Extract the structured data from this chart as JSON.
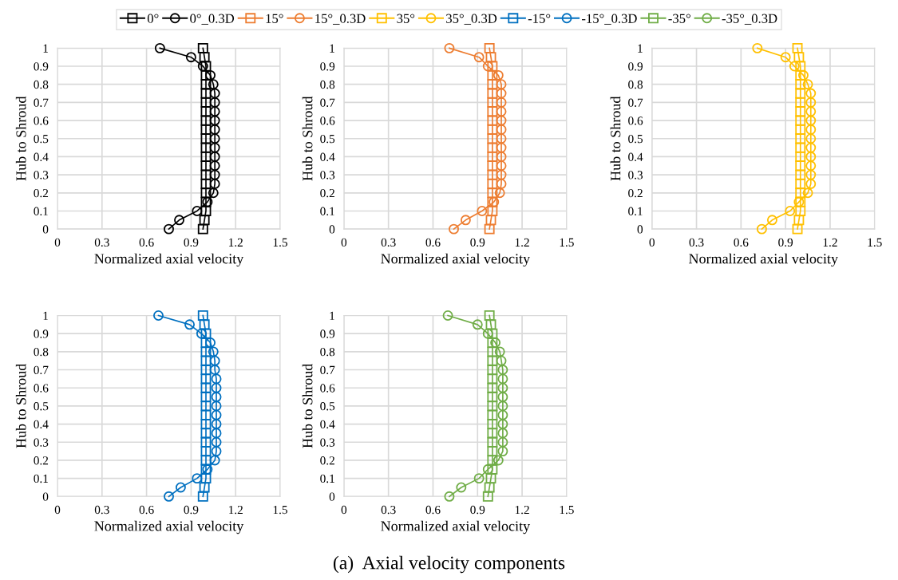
{
  "chart_data": [
    {
      "type": "line",
      "xlabel": "Normalized axial velocity",
      "ylabel": "Hub to Shroud",
      "xlim": [
        0,
        1.5
      ],
      "xticks": [
        0,
        0.3,
        0.6,
        0.9,
        1.2,
        1.5
      ],
      "ylim": [
        0,
        1
      ],
      "yticks": [
        0,
        0.1,
        0.2,
        0.3,
        0.4,
        0.5,
        0.6,
        0.7,
        0.8,
        0.9,
        1
      ],
      "grid": true,
      "legend": "top",
      "line_style": "solid",
      "series": [
        {
          "name": "0°",
          "color": "#000000",
          "marker": "square",
          "x": [
            0.98,
            0.99,
            1.0,
            1.0,
            1.0,
            1.0,
            1.0,
            1.0,
            1.0,
            1.0,
            1.0,
            1.0,
            1.0,
            1.0,
            1.0,
            1.0,
            1.0,
            1.0,
            1.0,
            0.99,
            0.98
          ],
          "values": [
            0,
            0.05,
            0.1,
            0.15,
            0.2,
            0.25,
            0.3,
            0.35,
            0.4,
            0.45,
            0.5,
            0.55,
            0.6,
            0.65,
            0.7,
            0.75,
            0.8,
            0.85,
            0.9,
            0.95,
            1
          ]
        },
        {
          "name": "0°_0.3D",
          "color": "#000000",
          "marker": "circle",
          "x": [
            0.75,
            0.82,
            0.94,
            1.01,
            1.05,
            1.06,
            1.06,
            1.06,
            1.06,
            1.06,
            1.06,
            1.06,
            1.06,
            1.06,
            1.06,
            1.06,
            1.05,
            1.03,
            0.98,
            0.9,
            0.69
          ],
          "values": [
            0,
            0.05,
            0.1,
            0.15,
            0.2,
            0.25,
            0.3,
            0.35,
            0.4,
            0.45,
            0.5,
            0.55,
            0.6,
            0.65,
            0.7,
            0.75,
            0.8,
            0.85,
            0.9,
            0.95,
            1
          ]
        }
      ]
    },
    {
      "type": "line",
      "xlabel": "Normalized axial velocity",
      "ylabel": "Hub to Shroud",
      "xlim": [
        0,
        1.5
      ],
      "xticks": [
        0,
        0.3,
        0.6,
        0.9,
        1.2,
        1.5
      ],
      "ylim": [
        0,
        1
      ],
      "yticks": [
        0,
        0.1,
        0.2,
        0.3,
        0.4,
        0.5,
        0.6,
        0.7,
        0.8,
        0.9,
        1
      ],
      "grid": true,
      "legend": "top",
      "line_style": "solid",
      "series": [
        {
          "name": "15°",
          "color": "#ed7d31",
          "marker": "square",
          "x": [
            0.98,
            0.99,
            1.0,
            1.0,
            1.0,
            1.0,
            1.0,
            1.0,
            1.0,
            1.0,
            1.0,
            1.0,
            1.0,
            1.0,
            1.0,
            1.0,
            1.0,
            1.0,
            1.0,
            0.99,
            0.98
          ],
          "values": [
            0,
            0.05,
            0.1,
            0.15,
            0.2,
            0.25,
            0.3,
            0.35,
            0.4,
            0.45,
            0.5,
            0.55,
            0.6,
            0.65,
            0.7,
            0.75,
            0.8,
            0.85,
            0.9,
            0.95,
            1
          ]
        },
        {
          "name": "15°_0.3D",
          "color": "#ed7d31",
          "marker": "circle",
          "x": [
            0.74,
            0.82,
            0.93,
            1.01,
            1.05,
            1.06,
            1.06,
            1.06,
            1.06,
            1.06,
            1.06,
            1.06,
            1.06,
            1.06,
            1.06,
            1.06,
            1.06,
            1.04,
            0.97,
            0.91,
            0.71
          ],
          "values": [
            0,
            0.05,
            0.1,
            0.15,
            0.2,
            0.25,
            0.3,
            0.35,
            0.4,
            0.45,
            0.5,
            0.55,
            0.6,
            0.65,
            0.7,
            0.75,
            0.8,
            0.85,
            0.9,
            0.95,
            1
          ]
        }
      ]
    },
    {
      "type": "line",
      "xlabel": "Normalized axial velocity",
      "ylabel": "Hub to Shroud",
      "xlim": [
        0,
        1.5
      ],
      "xticks": [
        0,
        0.3,
        0.6,
        0.9,
        1.2,
        1.5
      ],
      "ylim": [
        0,
        1
      ],
      "yticks": [
        0,
        0.1,
        0.2,
        0.3,
        0.4,
        0.5,
        0.6,
        0.7,
        0.8,
        0.9,
        1
      ],
      "grid": true,
      "legend": "top",
      "line_style": "solid",
      "series": [
        {
          "name": "35°",
          "color": "#ffc000",
          "marker": "square",
          "x": [
            0.98,
            0.99,
            1.0,
            1.0,
            1.0,
            1.0,
            1.0,
            1.0,
            1.0,
            1.0,
            1.0,
            1.0,
            1.0,
            1.0,
            1.0,
            1.0,
            1.0,
            1.0,
            1.0,
            0.99,
            0.98
          ],
          "values": [
            0,
            0.05,
            0.1,
            0.15,
            0.2,
            0.25,
            0.3,
            0.35,
            0.4,
            0.45,
            0.5,
            0.55,
            0.6,
            0.65,
            0.7,
            0.75,
            0.8,
            0.85,
            0.9,
            0.95,
            1
          ]
        },
        {
          "name": "35°_0.3D",
          "color": "#ffc000",
          "marker": "circle",
          "x": [
            0.74,
            0.81,
            0.93,
            0.99,
            1.05,
            1.07,
            1.07,
            1.07,
            1.07,
            1.07,
            1.07,
            1.07,
            1.07,
            1.07,
            1.07,
            1.07,
            1.05,
            1.02,
            0.96,
            0.9,
            0.71
          ],
          "values": [
            0,
            0.05,
            0.1,
            0.15,
            0.2,
            0.25,
            0.3,
            0.35,
            0.4,
            0.45,
            0.5,
            0.55,
            0.6,
            0.65,
            0.7,
            0.75,
            0.8,
            0.85,
            0.9,
            0.95,
            1
          ]
        }
      ]
    },
    {
      "type": "line",
      "xlabel": "Normalized axial velocity",
      "ylabel": "Hub to Shroud",
      "xlim": [
        0,
        1.5
      ],
      "xticks": [
        0,
        0.3,
        0.6,
        0.9,
        1.2,
        1.5
      ],
      "ylim": [
        0,
        1
      ],
      "yticks": [
        0,
        0.1,
        0.2,
        0.3,
        0.4,
        0.5,
        0.6,
        0.7,
        0.8,
        0.9,
        1
      ],
      "grid": true,
      "legend": "top",
      "line_style": "solid",
      "series": [
        {
          "name": "-15°",
          "color": "#0070c0",
          "marker": "square",
          "x": [
            0.98,
            0.99,
            1.0,
            1.0,
            1.0,
            1.0,
            1.0,
            1.0,
            1.0,
            1.0,
            1.0,
            1.0,
            1.0,
            1.0,
            1.0,
            1.0,
            1.0,
            1.0,
            1.0,
            0.99,
            0.98
          ],
          "values": [
            0,
            0.05,
            0.1,
            0.15,
            0.2,
            0.25,
            0.3,
            0.35,
            0.4,
            0.45,
            0.5,
            0.55,
            0.6,
            0.65,
            0.7,
            0.75,
            0.8,
            0.85,
            0.9,
            0.95,
            1
          ]
        },
        {
          "name": "-15°_0.3D",
          "color": "#0070c0",
          "marker": "circle",
          "x": [
            0.75,
            0.83,
            0.94,
            1.01,
            1.06,
            1.07,
            1.07,
            1.07,
            1.07,
            1.07,
            1.07,
            1.07,
            1.07,
            1.07,
            1.06,
            1.06,
            1.05,
            1.03,
            0.97,
            0.89,
            0.68
          ],
          "values": [
            0,
            0.05,
            0.1,
            0.15,
            0.2,
            0.25,
            0.3,
            0.35,
            0.4,
            0.45,
            0.5,
            0.55,
            0.6,
            0.65,
            0.7,
            0.75,
            0.8,
            0.85,
            0.9,
            0.95,
            1
          ]
        }
      ]
    },
    {
      "type": "line",
      "xlabel": "Normalized axial velocity",
      "ylabel": "Hub to Shroud",
      "xlim": [
        0,
        1.5
      ],
      "xticks": [
        0,
        0.3,
        0.6,
        0.9,
        1.2,
        1.5
      ],
      "ylim": [
        0,
        1
      ],
      "yticks": [
        0,
        0.1,
        0.2,
        0.3,
        0.4,
        0.5,
        0.6,
        0.7,
        0.8,
        0.9,
        1
      ],
      "grid": true,
      "legend": "top",
      "line_style": "solid",
      "annotations": [
        "(a)  Axial velocity components"
      ],
      "series": [
        {
          "name": "-35°",
          "color": "#70ad47",
          "marker": "square",
          "x": [
            0.97,
            0.98,
            0.99,
            1.0,
            1.0,
            1.0,
            1.0,
            1.0,
            1.0,
            1.0,
            1.0,
            1.0,
            1.0,
            1.0,
            1.0,
            1.0,
            1.0,
            1.0,
            1.0,
            0.99,
            0.98
          ],
          "values": [
            0,
            0.05,
            0.1,
            0.15,
            0.2,
            0.25,
            0.3,
            0.35,
            0.4,
            0.45,
            0.5,
            0.55,
            0.6,
            0.65,
            0.7,
            0.75,
            0.8,
            0.85,
            0.9,
            0.95,
            1
          ]
        },
        {
          "name": "-35°_0.3D",
          "color": "#70ad47",
          "marker": "circle",
          "x": [
            0.71,
            0.79,
            0.91,
            0.97,
            1.04,
            1.07,
            1.07,
            1.07,
            1.07,
            1.07,
            1.07,
            1.07,
            1.07,
            1.07,
            1.07,
            1.06,
            1.05,
            1.02,
            0.97,
            0.9,
            0.7
          ],
          "values": [
            0,
            0.05,
            0.1,
            0.15,
            0.2,
            0.25,
            0.3,
            0.35,
            0.4,
            0.45,
            0.5,
            0.55,
            0.6,
            0.65,
            0.7,
            0.75,
            0.8,
            0.85,
            0.9,
            0.95,
            1
          ]
        }
      ]
    }
  ]
}
